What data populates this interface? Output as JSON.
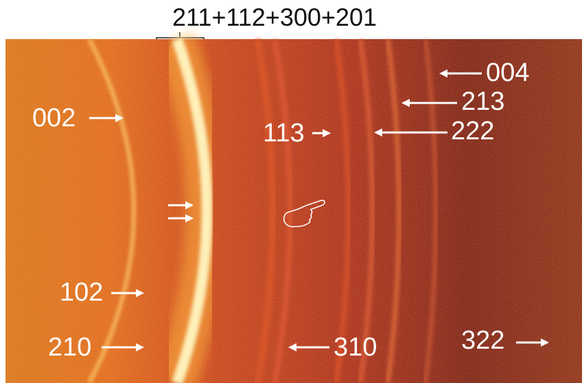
{
  "title": "211+112+300+201",
  "labels": [
    "002",
    "113",
    "004",
    "213",
    "222",
    "102",
    "210",
    "310",
    "322"
  ]
}
